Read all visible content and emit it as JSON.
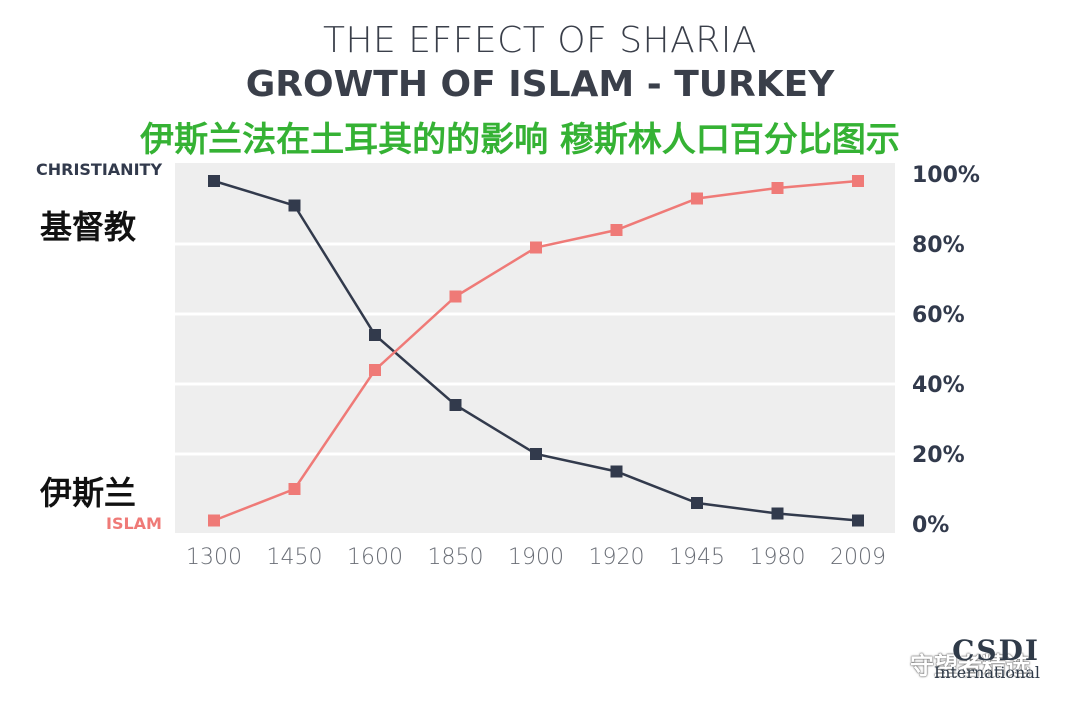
{
  "header": {
    "title_line1": "THE EFFECT OF SHARIA",
    "title_line2": "GROWTH OF ISLAM - TURKEY",
    "subtitle_cn": "伊斯兰法在土耳其的的影响   穆斯林人口百分比图示"
  },
  "labels": {
    "christianity_en": "CHRISTIANITY",
    "christianity_cn": "基督教",
    "islam_en": "ISLAM",
    "islam_cn": "伊斯兰"
  },
  "colors": {
    "christianity": "#323a4c",
    "islam": "#ef7a77",
    "plot_bg": "#eeeeee",
    "grid": "#ffffff"
  },
  "watermark": {
    "icon": "wechat-icon",
    "text": "守望者精选",
    "logo_text": "CSDI",
    "logo_sub": "International"
  },
  "chart_data": {
    "type": "line",
    "categories": [
      "1300",
      "1450",
      "1600",
      "1850",
      "1900",
      "1920",
      "1945",
      "1980",
      "2009"
    ],
    "series": [
      {
        "name": "CHRISTIANITY",
        "values": [
          98,
          91,
          54,
          34,
          20,
          15,
          6,
          3,
          1
        ]
      },
      {
        "name": "ISLAM",
        "values": [
          1,
          10,
          44,
          65,
          79,
          84,
          93,
          96,
          98
        ]
      }
    ],
    "y_ticks": [
      "0%",
      "20%",
      "40%",
      "60%",
      "80%",
      "100%"
    ],
    "ylim": [
      0,
      100
    ],
    "grid": true,
    "legend": "left, labels beside series"
  }
}
